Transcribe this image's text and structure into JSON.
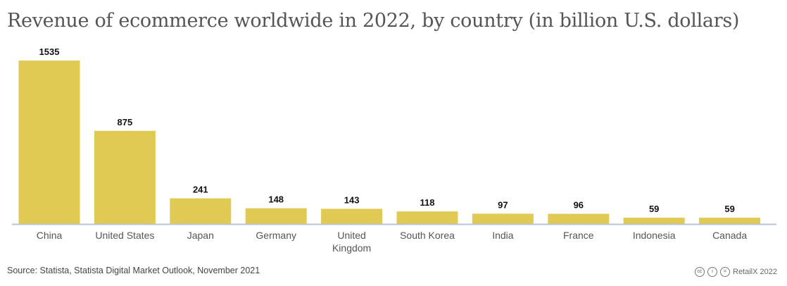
{
  "title": "Revenue of ecommerce worldwide in 2022, by country (in billion U.S. dollars)",
  "source": "Source: Statista, Statista Digital Market Outlook, November 2021",
  "credit": "RetailX 2022",
  "license_icons": [
    "cc-icon",
    "attribution-icon",
    "no-derivatives-icon"
  ],
  "colors": {
    "bar": "#e0ca53",
    "axis": "#b8c4d8",
    "label": "#555555"
  },
  "chart_data": {
    "type": "bar",
    "title": "Revenue of ecommerce worldwide in 2022, by country (in billion U.S. dollars)",
    "categories": [
      "China",
      "United States",
      "Japan",
      "Germany",
      "United Kingdom",
      "South Korea",
      "India",
      "France",
      "Indonesia",
      "Canada"
    ],
    "values": [
      1535,
      875,
      241,
      148,
      143,
      118,
      97,
      96,
      59,
      59
    ],
    "xlabel": "",
    "ylabel": "",
    "ylim": [
      0,
      1535
    ],
    "grid": false,
    "data_labels": true
  }
}
